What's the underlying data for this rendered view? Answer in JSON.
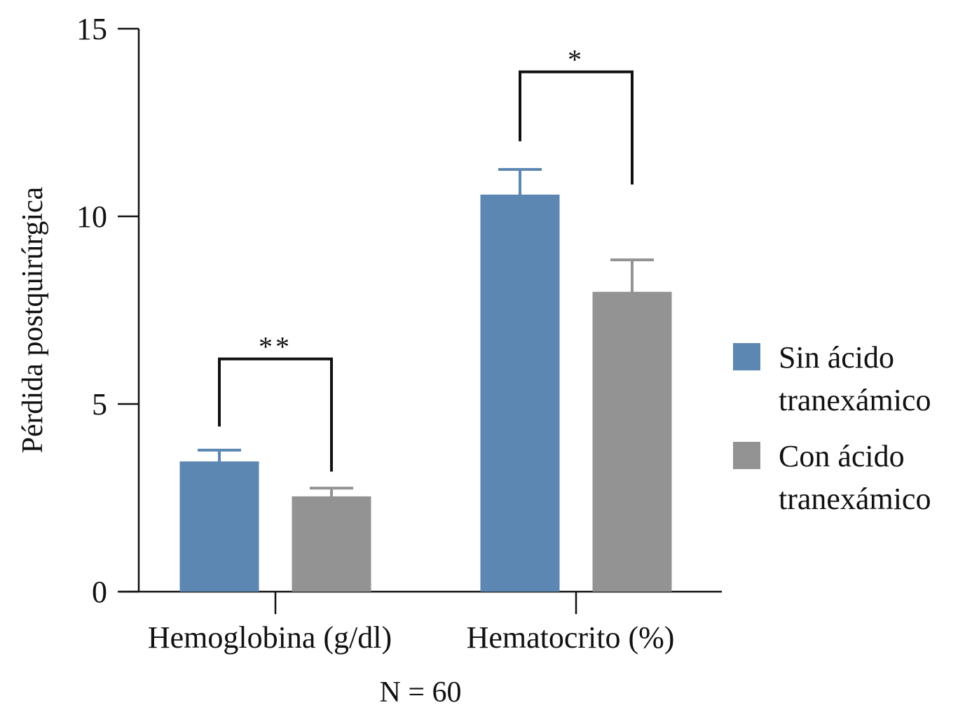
{
  "chart_data": {
    "type": "bar",
    "title": "",
    "xlabel": "N = 60",
    "ylabel": "Pérdida postquirúrgica",
    "ylim": [
      0,
      15
    ],
    "yticks": [
      0,
      5,
      10,
      15
    ],
    "ytick_labels": [
      "0",
      "5",
      "10",
      "15"
    ],
    "categories": [
      "Hemoglobina (g/dl)",
      "Hematocrito (%)"
    ],
    "series": [
      {
        "name": "Sin ácido tranexámico",
        "color": "#5b87b2",
        "values": [
          3.47,
          10.58
        ],
        "error_upper": [
          0.3,
          0.67
        ]
      },
      {
        "name": "Con ácido tranexámico",
        "color": "#939393",
        "values": [
          2.54,
          7.99
        ],
        "error_upper": [
          0.22,
          0.85
        ]
      }
    ],
    "significance": [
      {
        "category": "Hemoglobina (g/dl)",
        "label": "**",
        "bracket_y": 6.2,
        "left_drop": 4.4,
        "right_drop": 3.2
      },
      {
        "category": "Hematocrito (%)",
        "label": "*",
        "bracket_y": 13.85,
        "left_drop": 12.0,
        "right_drop": 10.85
      }
    ],
    "legend": {
      "placement": "right",
      "entries": [
        {
          "lines": [
            "Sin ácido",
            "tranexámico"
          ],
          "color": "#5b87b2"
        },
        {
          "lines": [
            "Con ácido",
            "tranexámico"
          ],
          "color": "#939393"
        }
      ]
    },
    "grid": false
  }
}
